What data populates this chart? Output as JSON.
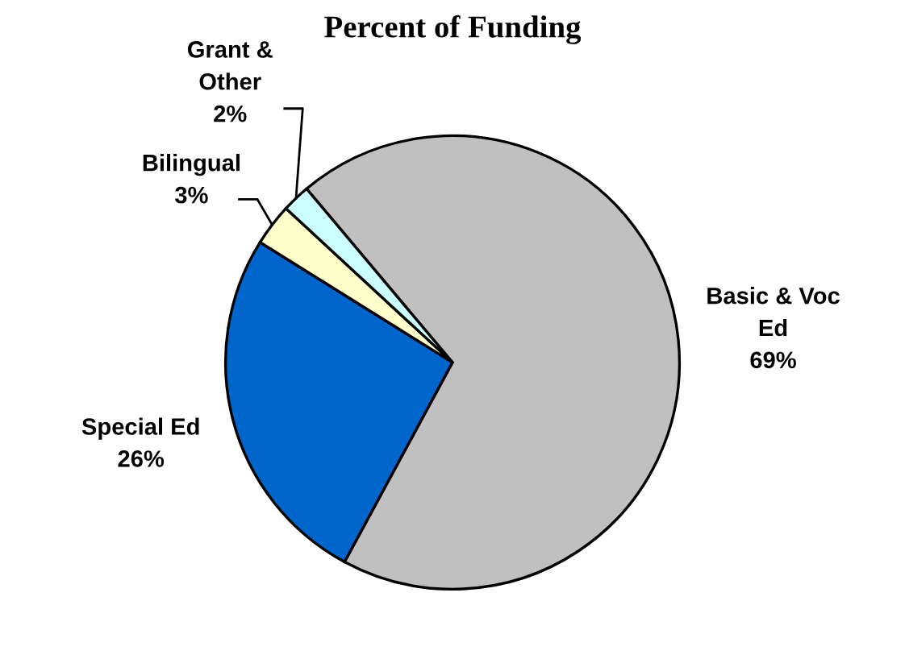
{
  "chart_data": {
    "type": "pie",
    "title": "Percent of Funding",
    "categories": [
      "Basic & Voc\nEd",
      "Special Ed",
      "Bilingual",
      "Grant &\nOther"
    ],
    "values": [
      69,
      26,
      3,
      2
    ],
    "colors": [
      "#c0c0c0",
      "#0066cc",
      "#ffffcc",
      "#ccffff"
    ],
    "value_labels": [
      "69%",
      "26%",
      "3%",
      "2%"
    ]
  }
}
